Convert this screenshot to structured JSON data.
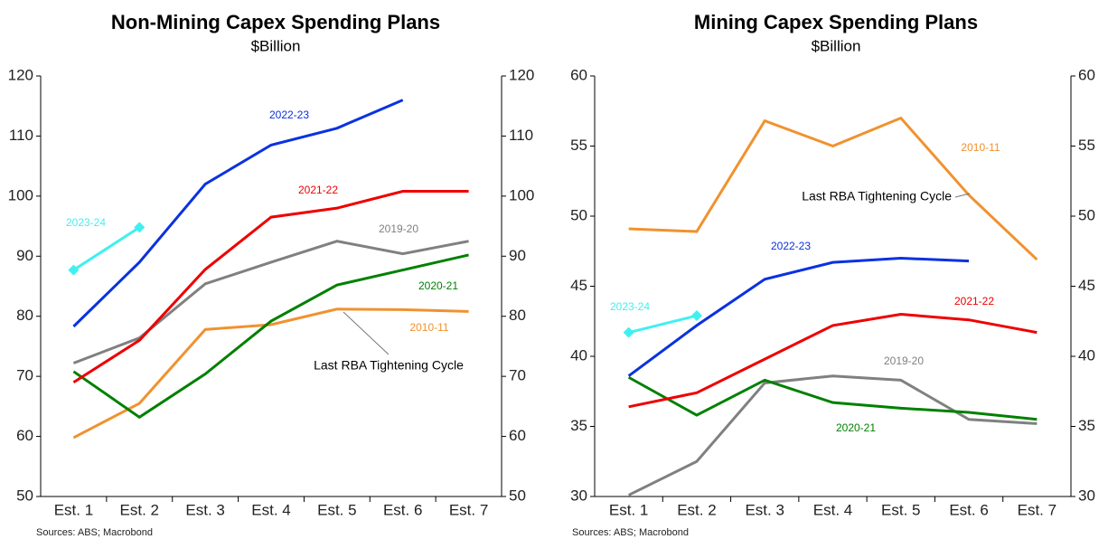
{
  "chart_data": [
    {
      "type": "line",
      "title": "Non-Mining Capex Spending Plans",
      "subtitle": "$Billion",
      "categories": [
        "Est. 1",
        "Est. 2",
        "Est. 3",
        "Est. 4",
        "Est. 5",
        "Est. 6",
        "Est. 7"
      ],
      "ylim": [
        50,
        120
      ],
      "yticks": [
        50,
        60,
        70,
        80,
        90,
        100,
        110,
        120
      ],
      "series": [
        {
          "name": "2010-11",
          "color": "#f0922f",
          "values": [
            59.8,
            65.5,
            77.8,
            78.6,
            81.2,
            81.1,
            80.8
          ]
        },
        {
          "name": "2019-20",
          "color": "#808080",
          "values": [
            72.2,
            76.4,
            85.4,
            89,
            92.5,
            90.4,
            92.5
          ]
        },
        {
          "name": "2020-21",
          "color": "#008000",
          "values": [
            70.8,
            63.2,
            70.4,
            79.2,
            85.2,
            87.7,
            90.2
          ]
        },
        {
          "name": "2021-22",
          "color": "#ee0000",
          "values": [
            69,
            76,
            87.8,
            96.5,
            98,
            100.8,
            100.8
          ]
        },
        {
          "name": "2022-23",
          "color": "#0a32e0",
          "values": [
            78.3,
            89,
            102,
            108.5,
            111.3,
            116,
            null
          ]
        },
        {
          "name": "2023-24",
          "color": "#40f0f0",
          "markers": true,
          "values": [
            87.7,
            94.8,
            null,
            null,
            null,
            null,
            null
          ]
        }
      ],
      "annotation": "Last RBA Tightening Cycle",
      "source": "Sources: ABS; Macrobond"
    },
    {
      "type": "line",
      "title": "Mining Capex Spending Plans",
      "subtitle": "$Billion",
      "categories": [
        "Est. 1",
        "Est. 2",
        "Est. 3",
        "Est. 4",
        "Est. 5",
        "Est. 6",
        "Est. 7"
      ],
      "ylim": [
        30,
        60
      ],
      "yticks": [
        30,
        35,
        40,
        45,
        50,
        55,
        60
      ],
      "series": [
        {
          "name": "2010-11",
          "color": "#f0922f",
          "values": [
            49.1,
            48.9,
            56.8,
            55,
            57,
            51.5,
            46.9
          ]
        },
        {
          "name": "2019-20",
          "color": "#808080",
          "values": [
            30.1,
            32.5,
            38.1,
            38.6,
            38.3,
            35.5,
            35.2
          ]
        },
        {
          "name": "2020-21",
          "color": "#008000",
          "values": [
            38.5,
            35.8,
            38.3,
            36.7,
            36.3,
            36,
            35.5
          ]
        },
        {
          "name": "2021-22",
          "color": "#ee0000",
          "values": [
            36.4,
            37.4,
            39.8,
            42.2,
            43,
            42.6,
            41.7
          ]
        },
        {
          "name": "2022-23",
          "color": "#0a32e0",
          "values": [
            38.6,
            42.2,
            45.5,
            46.7,
            47,
            46.8,
            null
          ]
        },
        {
          "name": "2023-24",
          "color": "#40f0f0",
          "markers": true,
          "values": [
            41.7,
            42.9,
            null,
            null,
            null,
            null,
            null
          ]
        }
      ],
      "annotation": "Last RBA Tightening Cycle",
      "source": "Sources: ABS; Macrobond"
    }
  ]
}
